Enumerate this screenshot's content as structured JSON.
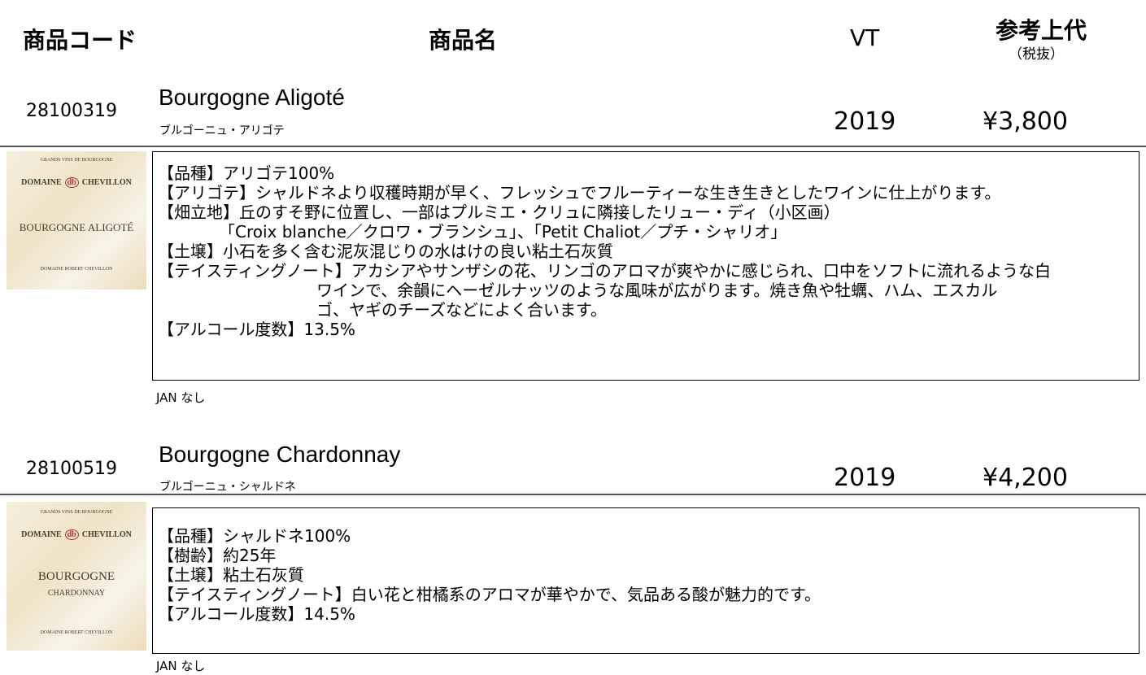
{
  "header": {
    "code": "商品コード",
    "name": "商品名",
    "vt": "VT",
    "price": "参考上代",
    "price_note": "（税抜）"
  },
  "products": [
    {
      "code": "28100319",
      "name": "Bourgogne Aligoté",
      "kana": "ブルゴーニュ・アリゴテ",
      "vt": "2019",
      "price": "¥3,800",
      "label": [
        "GRANDS VINS DE BOURGOGNE",
        "DOMAINE",
        "CHEVILLON",
        "BOURGOGNE ALIGOTÉ",
        "DOMAINE ROBERT CHEVILLON"
      ],
      "description": [
        "【品種】アリゴテ100%",
        "【アリゴテ】シャルドネより収穫時期が早く、フレッシュでフルーティーな生き生きとしたワインに仕上がります。",
        "【畑立地】丘のすそ野に位置し、一部はプルミエ・クリュに隣接したリュー・ディ（小区画）",
        "「Croix blanche／クロワ・ブランシュ」、「Petit Chaliot／プチ・シャリオ」",
        "【土壌】小石を多く含む泥灰混じりの水はけの良い粘土石灰質",
        "【テイスティングノート】アカシアやサンザシの花、リンゴのアロマが爽やかに感じられ、口中をソフトに流れるような白",
        "ワインで、余韻にヘーゼルナッツのような風味が広がります。焼き魚や牡蠣、ハム、エスカル",
        "ゴ、ヤギのチーズなどによく合います。",
        "【アルコール度数】13.5%"
      ],
      "jan": "JAN  なし"
    },
    {
      "code": "28100519",
      "name": "Bourgogne Chardonnay",
      "kana": "ブルゴーニュ・シャルドネ",
      "vt": "2019",
      "price": "¥4,200",
      "label": [
        "GRANDS VINS DE BOURGOGNE",
        "DOMAINE",
        "CHEVILLON",
        "BOURGOGNE",
        "CHARDONNAY",
        "DOMAINE ROBERT CHEVILLON"
      ],
      "description": [
        "【品種】シャルドネ100%",
        "【樹齢】約25年",
        "【土壌】粘土石灰質",
        "【テイスティングノート】白い花と柑橘系のアロマが華やかで、気品ある酸が魅力的です。",
        "【アルコール度数】14.5%"
      ],
      "jan": "JAN  なし"
    }
  ]
}
